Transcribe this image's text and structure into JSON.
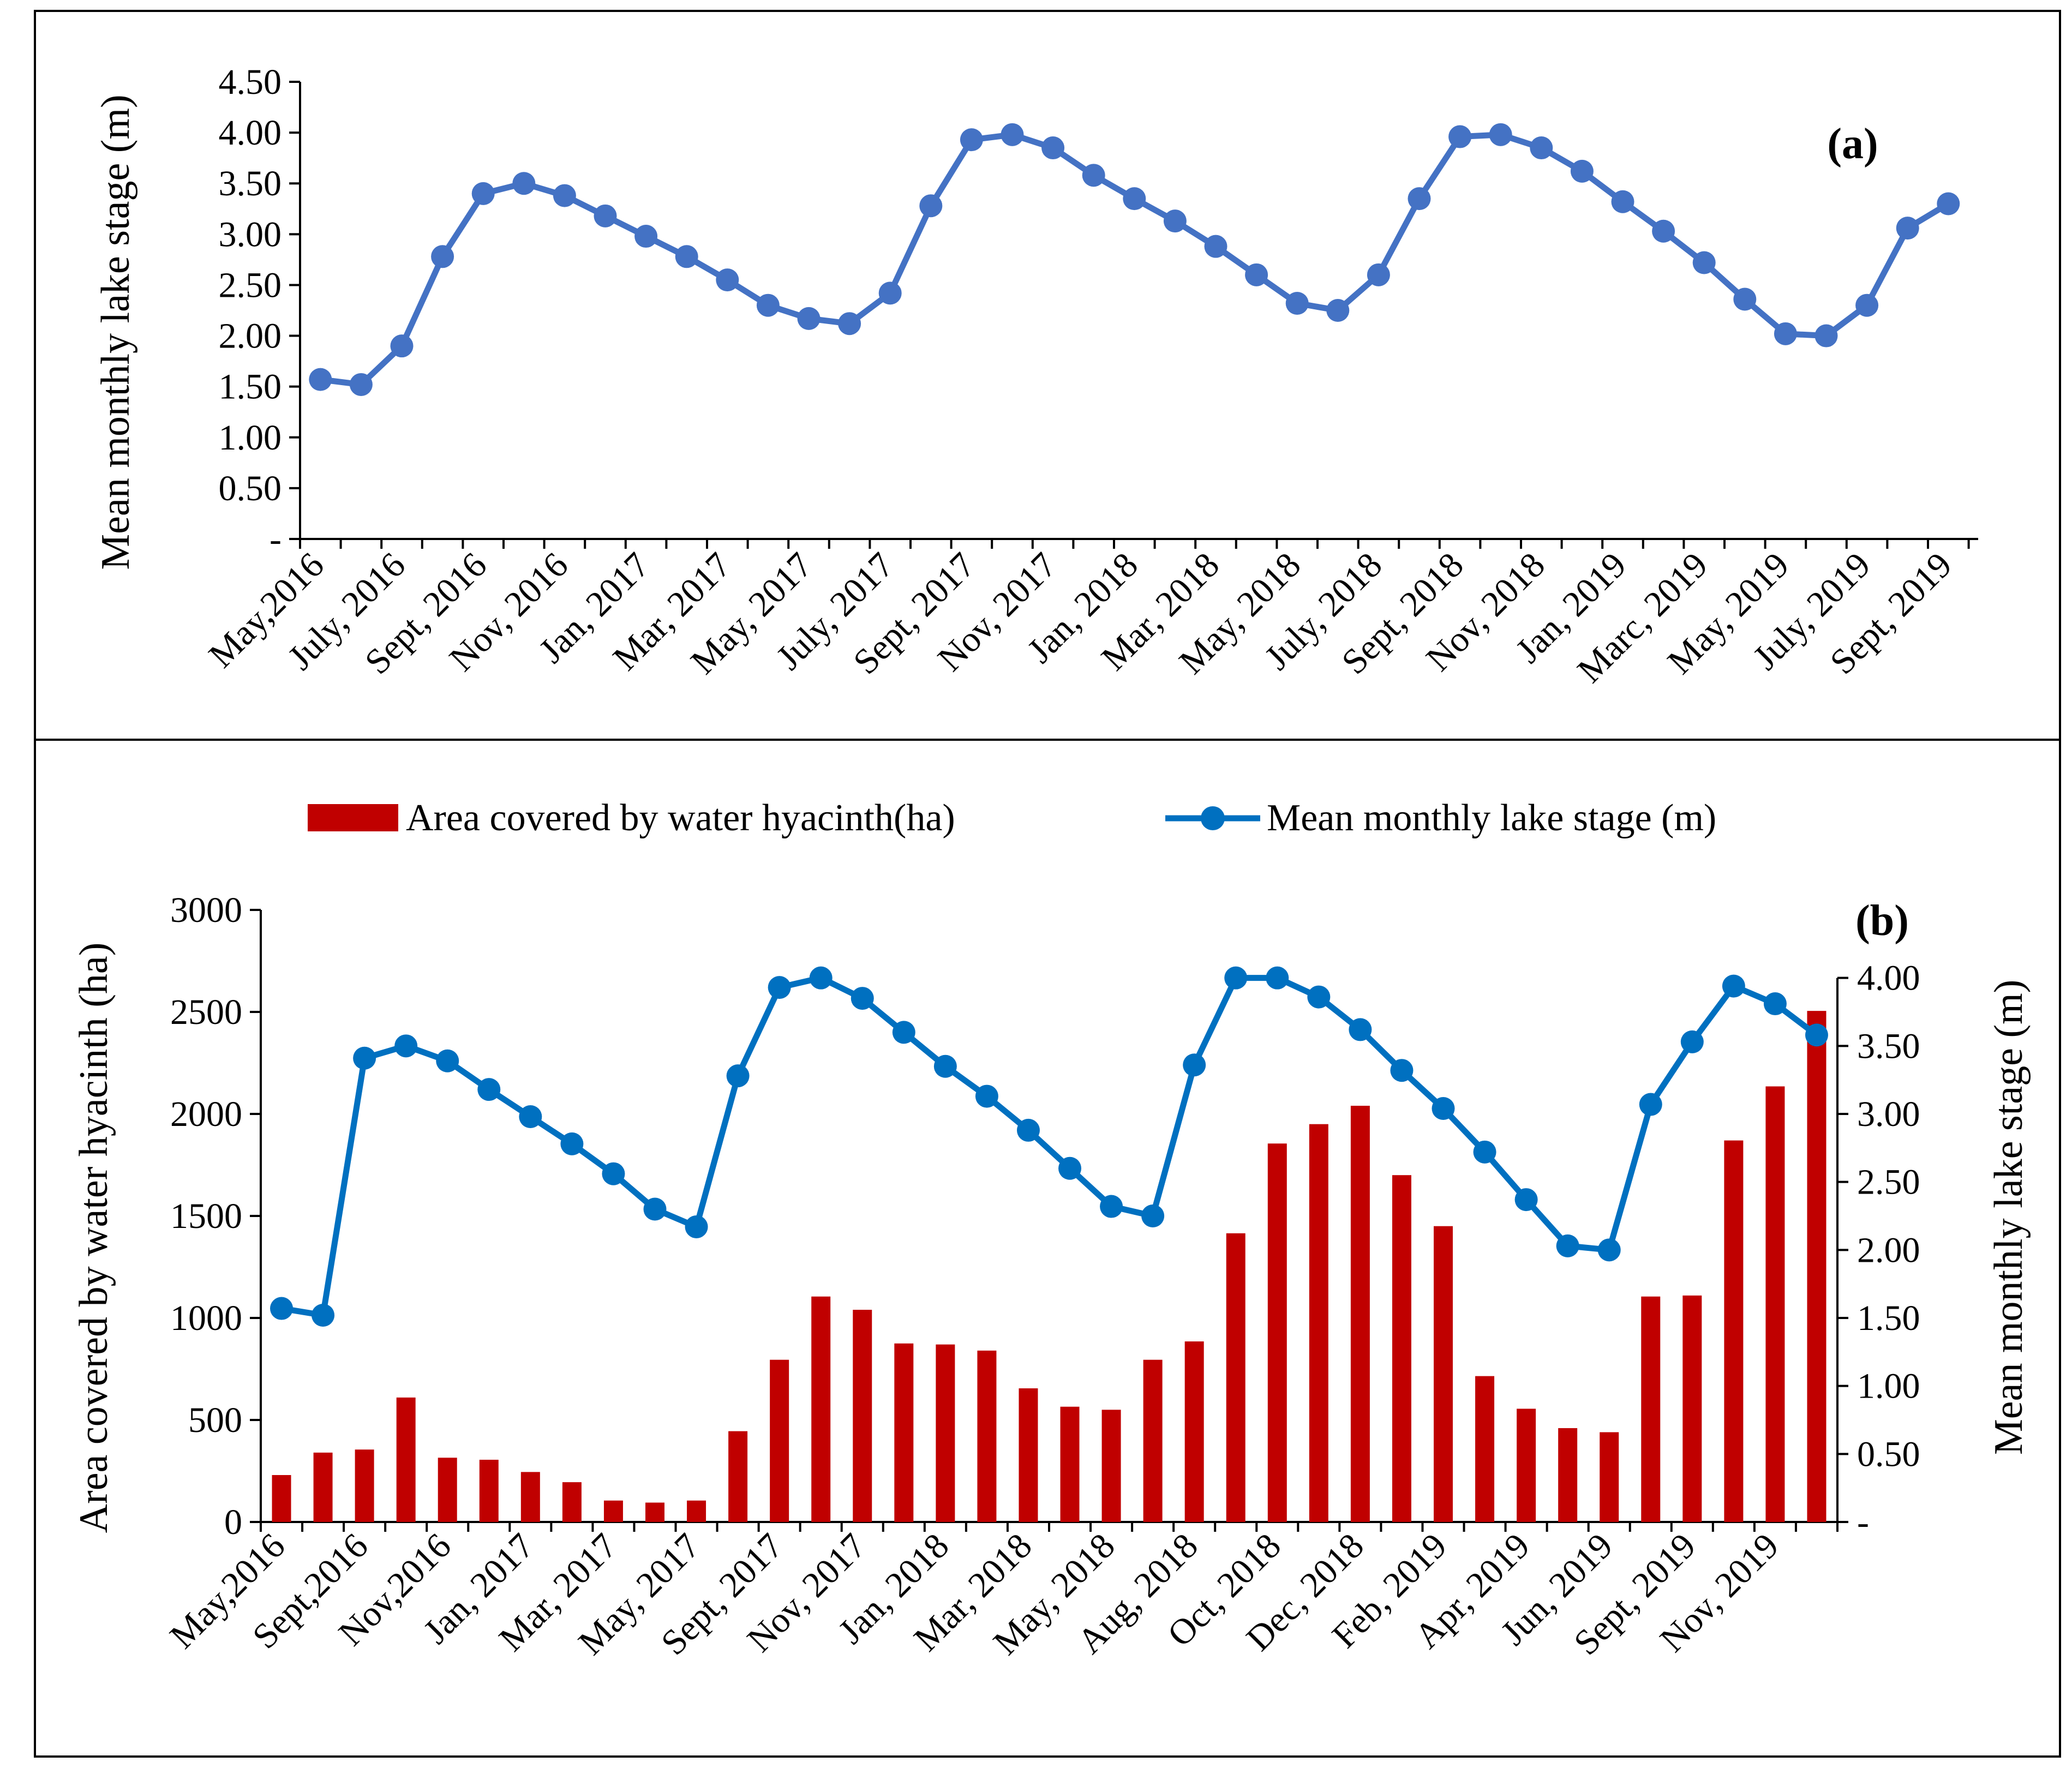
{
  "colors": {
    "line_a": "#4472C4",
    "line_b": "#0070C0",
    "bar": "#C00000",
    "axis": "#000000"
  },
  "chart_data": [
    {
      "id": "a",
      "type": "line",
      "panel_label": "(a)",
      "ylabel": "Mean monthly lake stage (m)",
      "ylim": [
        0,
        4.5
      ],
      "yticks": [
        {
          "value": 0,
          "label": "-"
        },
        {
          "value": 0.5,
          "label": "0.50"
        },
        {
          "value": 1.0,
          "label": "1.00"
        },
        {
          "value": 1.5,
          "label": "1.50"
        },
        {
          "value": 2.0,
          "label": "2.00"
        },
        {
          "value": 2.5,
          "label": "2.50"
        },
        {
          "value": 3.0,
          "label": "3.00"
        },
        {
          "value": 3.5,
          "label": "3.50"
        },
        {
          "value": 4.0,
          "label": "4.00"
        },
        {
          "value": 4.5,
          "label": "4.50"
        }
      ],
      "xtick_labels": [
        {
          "index": 0,
          "label": "May,2016"
        },
        {
          "index": 2,
          "label": "July, 2016"
        },
        {
          "index": 4,
          "label": "Sept, 2016"
        },
        {
          "index": 6,
          "label": "Nov, 2016"
        },
        {
          "index": 8,
          "label": "Jan, 2017"
        },
        {
          "index": 10,
          "label": "Mar, 2017"
        },
        {
          "index": 12,
          "label": "May, 2017"
        },
        {
          "index": 14,
          "label": "July, 2017"
        },
        {
          "index": 16,
          "label": "Sept, 2017"
        },
        {
          "index": 18,
          "label": "Nov, 2017"
        },
        {
          "index": 20,
          "label": "Jan, 2018"
        },
        {
          "index": 22,
          "label": "Mar, 2018"
        },
        {
          "index": 24,
          "label": "May, 2018"
        },
        {
          "index": 26,
          "label": "July, 2018"
        },
        {
          "index": 28,
          "label": "Sept, 2018"
        },
        {
          "index": 30,
          "label": "Nov, 2018"
        },
        {
          "index": 32,
          "label": "Jan, 2019"
        },
        {
          "index": 34,
          "label": "Marc, 2019"
        },
        {
          "index": 36,
          "label": "May, 2019"
        },
        {
          "index": 38,
          "label": "July, 2019"
        },
        {
          "index": 40,
          "label": "Sept, 2019"
        }
      ],
      "series": [
        {
          "name": "Mean monthly lake stage (m)",
          "values": [
            1.57,
            1.52,
            1.9,
            2.78,
            3.4,
            3.5,
            3.38,
            3.18,
            2.98,
            2.78,
            2.55,
            2.3,
            2.17,
            2.12,
            2.42,
            3.28,
            3.93,
            3.98,
            3.85,
            3.58,
            3.35,
            3.13,
            2.88,
            2.6,
            2.32,
            2.25,
            2.6,
            3.35,
            3.96,
            3.98,
            3.85,
            3.62,
            3.32,
            3.03,
            2.72,
            2.36,
            2.02,
            2.0,
            2.3,
            3.06,
            3.3
          ]
        }
      ]
    },
    {
      "id": "b",
      "type": "bar+line",
      "panel_label": "(b)",
      "ylabel_left": "Area covered by water hyacinth (ha)",
      "ylabel_right": "Mean monthly lake stage (m)",
      "ylim_left": [
        0,
        3000
      ],
      "ylim_right": [
        0,
        4.5
      ],
      "yticks_left": [
        {
          "value": 0,
          "label": "0"
        },
        {
          "value": 500,
          "label": "500"
        },
        {
          "value": 1000,
          "label": "1000"
        },
        {
          "value": 1500,
          "label": "1500"
        },
        {
          "value": 2000,
          "label": "2000"
        },
        {
          "value": 2500,
          "label": "2500"
        },
        {
          "value": 3000,
          "label": "3000"
        }
      ],
      "yticks_right": [
        {
          "value": 0,
          "label": "-"
        },
        {
          "value": 0.5,
          "label": "0.50"
        },
        {
          "value": 1.0,
          "label": "1.00"
        },
        {
          "value": 1.5,
          "label": "1.50"
        },
        {
          "value": 2.0,
          "label": "2.00"
        },
        {
          "value": 2.5,
          "label": "2.50"
        },
        {
          "value": 3.0,
          "label": "3.00"
        },
        {
          "value": 3.5,
          "label": "3.50"
        },
        {
          "value": 4.0,
          "label": "4.00"
        }
      ],
      "legend": [
        {
          "kind": "bar",
          "label": "Area covered by water hyacinth(ha)"
        },
        {
          "kind": "line",
          "label": "Mean monthly lake stage (m)"
        }
      ],
      "xtick_labels": [
        {
          "index": 0,
          "label": "May,2016"
        },
        {
          "index": 2,
          "label": "Sept,2016"
        },
        {
          "index": 4,
          "label": "Nov,2016"
        },
        {
          "index": 6,
          "label": "Jan, 2017"
        },
        {
          "index": 8,
          "label": "Mar, 2017"
        },
        {
          "index": 10,
          "label": "May, 2017"
        },
        {
          "index": 12,
          "label": "Sept, 2017"
        },
        {
          "index": 14,
          "label": "Nov, 2017"
        },
        {
          "index": 16,
          "label": "Jan, 2018"
        },
        {
          "index": 18,
          "label": "Mar, 2018"
        },
        {
          "index": 20,
          "label": "May, 2018"
        },
        {
          "index": 22,
          "label": "Aug, 2018"
        },
        {
          "index": 24,
          "label": "Oct, 2018"
        },
        {
          "index": 26,
          "label": "Dec, 2018"
        },
        {
          "index": 28,
          "label": "Feb, 2019"
        },
        {
          "index": 30,
          "label": "Apr, 2019"
        },
        {
          "index": 32,
          "label": "Jun, 2019"
        },
        {
          "index": 34,
          "label": "Sept, 2019"
        },
        {
          "index": 36,
          "label": "Nov, 2019"
        }
      ],
      "series": [
        {
          "name": "Area covered by water hyacinth(ha)",
          "kind": "bar",
          "axis": "left",
          "values": [
            230,
            340,
            355,
            610,
            315,
            305,
            245,
            195,
            105,
            95,
            105,
            445,
            795,
            1105,
            1040,
            875,
            870,
            840,
            655,
            565,
            550,
            795,
            885,
            1415,
            1855,
            1950,
            2040,
            1700,
            1450,
            715,
            555,
            460,
            440,
            1105,
            1110,
            1870,
            2135,
            2505
          ]
        },
        {
          "name": "Mean monthly lake stage (m)",
          "kind": "line",
          "axis": "right",
          "values": [
            1.57,
            1.52,
            3.41,
            3.5,
            3.39,
            3.18,
            2.98,
            2.78,
            2.56,
            2.3,
            2.17,
            3.28,
            3.93,
            4.0,
            3.85,
            3.6,
            3.35,
            3.13,
            2.88,
            2.6,
            2.32,
            2.25,
            3.36,
            4.0,
            4.0,
            3.86,
            3.62,
            3.32,
            3.04,
            2.72,
            2.37,
            2.03,
            2.0,
            3.07,
            3.53,
            3.94,
            3.81,
            3.58
          ]
        }
      ]
    }
  ]
}
